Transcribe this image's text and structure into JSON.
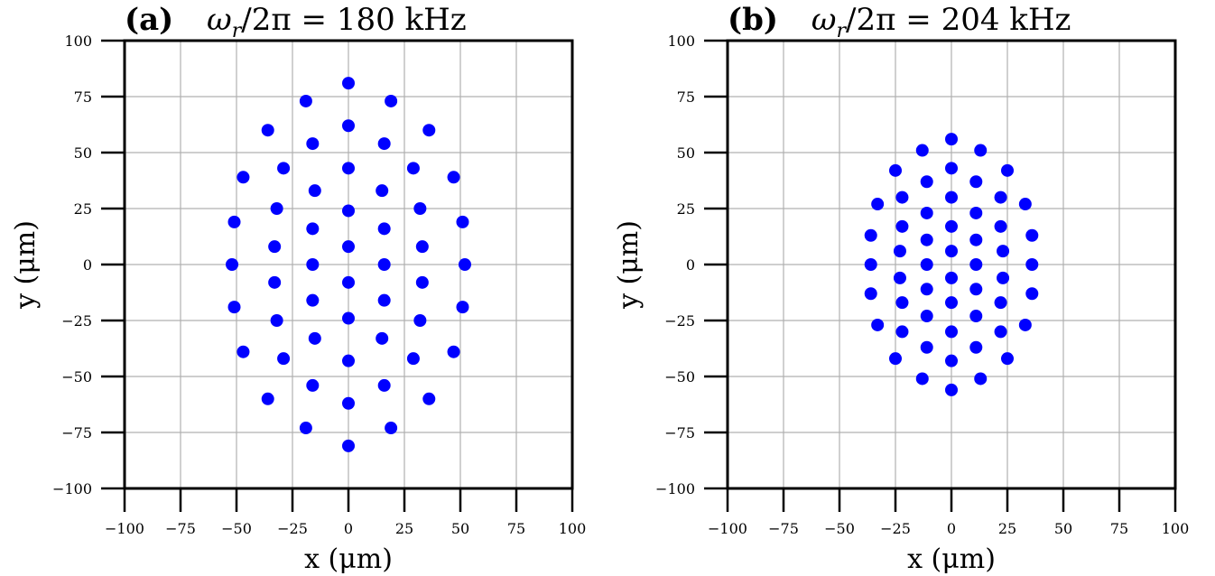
{
  "chart_data": [
    {
      "type": "scatter",
      "panel": "(a)",
      "title": "ω_r/2π = 180 kHz",
      "title_parts": {
        "omega": "ω",
        "sub": "r",
        "rest": "/2π = 180 kHz"
      },
      "xlabel": "x (μm)",
      "ylabel": "y (μm)",
      "xlim": [
        -100,
        100
      ],
      "ylim": [
        -100,
        100
      ],
      "xticks": [
        -100,
        -75,
        -50,
        -25,
        0,
        25,
        50,
        75,
        100
      ],
      "yticks": [
        -100,
        -75,
        -50,
        -25,
        0,
        25,
        50,
        75,
        100
      ],
      "grid": true,
      "marker_color": "#0000ff",
      "points": [
        [
          0,
          81
        ],
        [
          -19,
          73
        ],
        [
          19,
          73
        ],
        [
          -36,
          60
        ],
        [
          36,
          60
        ],
        [
          0,
          62
        ],
        [
          -16,
          54
        ],
        [
          16,
          54
        ],
        [
          -47,
          39
        ],
        [
          47,
          39
        ],
        [
          -29,
          43
        ],
        [
          29,
          43
        ],
        [
          0,
          43
        ],
        [
          -15,
          33
        ],
        [
          15,
          33
        ],
        [
          -51,
          19
        ],
        [
          51,
          19
        ],
        [
          -32,
          25
        ],
        [
          32,
          25
        ],
        [
          0,
          24
        ],
        [
          -16,
          16
        ],
        [
          16,
          16
        ],
        [
          -33,
          8
        ],
        [
          33,
          8
        ],
        [
          0,
          8
        ],
        [
          -52,
          0
        ],
        [
          52,
          0
        ],
        [
          -16,
          0
        ],
        [
          16,
          0
        ],
        [
          -33,
          -8
        ],
        [
          33,
          -8
        ],
        [
          0,
          -8
        ],
        [
          -16,
          -16
        ],
        [
          16,
          -16
        ],
        [
          -51,
          -19
        ],
        [
          51,
          -19
        ],
        [
          -32,
          -25
        ],
        [
          32,
          -25
        ],
        [
          0,
          -24
        ],
        [
          -15,
          -33
        ],
        [
          15,
          -33
        ],
        [
          -47,
          -39
        ],
        [
          47,
          -39
        ],
        [
          -29,
          -42
        ],
        [
          29,
          -42
        ],
        [
          0,
          -43
        ],
        [
          -16,
          -54
        ],
        [
          16,
          -54
        ],
        [
          -36,
          -60
        ],
        [
          36,
          -60
        ],
        [
          0,
          -62
        ],
        [
          -19,
          -73
        ],
        [
          19,
          -73
        ],
        [
          0,
          -81
        ]
      ]
    },
    {
      "type": "scatter",
      "panel": "(b)",
      "title": "ω_r/2π = 204 kHz",
      "title_parts": {
        "omega": "ω",
        "sub": "r",
        "rest": "/2π = 204 kHz"
      },
      "xlabel": "x (μm)",
      "ylabel": "y (μm)",
      "xlim": [
        -100,
        100
      ],
      "ylim": [
        -100,
        100
      ],
      "xticks": [
        -100,
        -75,
        -50,
        -25,
        0,
        25,
        50,
        75,
        100
      ],
      "yticks": [
        -100,
        -75,
        -50,
        -25,
        0,
        25,
        50,
        75,
        100
      ],
      "grid": true,
      "marker_color": "#0000ff",
      "points": [
        [
          0,
          56
        ],
        [
          -13,
          51
        ],
        [
          13,
          51
        ],
        [
          -25,
          42
        ],
        [
          25,
          42
        ],
        [
          0,
          43
        ],
        [
          -11,
          37
        ],
        [
          11,
          37
        ],
        [
          -22,
          30
        ],
        [
          22,
          30
        ],
        [
          0,
          30
        ],
        [
          -33,
          27
        ],
        [
          33,
          27
        ],
        [
          -11,
          23
        ],
        [
          11,
          23
        ],
        [
          -22,
          17
        ],
        [
          22,
          17
        ],
        [
          0,
          17
        ],
        [
          -36,
          13
        ],
        [
          36,
          13
        ],
        [
          -11,
          11
        ],
        [
          11,
          11
        ],
        [
          -23,
          6
        ],
        [
          23,
          6
        ],
        [
          0,
          6
        ],
        [
          -36,
          0
        ],
        [
          36,
          0
        ],
        [
          -11,
          0
        ],
        [
          11,
          0
        ],
        [
          -23,
          -6
        ],
        [
          23,
          -6
        ],
        [
          0,
          -6
        ],
        [
          -11,
          -11
        ],
        [
          11,
          -11
        ],
        [
          -36,
          -13
        ],
        [
          36,
          -13
        ],
        [
          -22,
          -17
        ],
        [
          22,
          -17
        ],
        [
          0,
          -17
        ],
        [
          -11,
          -23
        ],
        [
          11,
          -23
        ],
        [
          -33,
          -27
        ],
        [
          33,
          -27
        ],
        [
          -22,
          -30
        ],
        [
          22,
          -30
        ],
        [
          0,
          -30
        ],
        [
          -11,
          -37
        ],
        [
          11,
          -37
        ],
        [
          -25,
          -42
        ],
        [
          25,
          -42
        ],
        [
          0,
          -43
        ],
        [
          -13,
          -51
        ],
        [
          13,
          -51
        ],
        [
          0,
          -56
        ]
      ]
    }
  ]
}
